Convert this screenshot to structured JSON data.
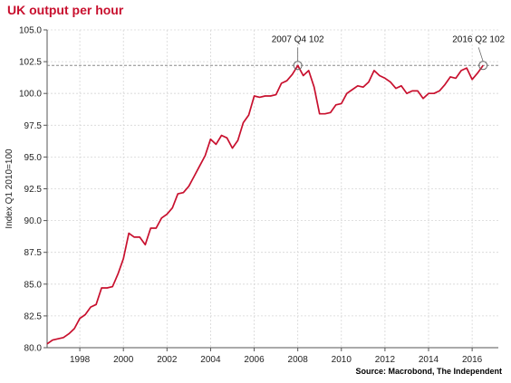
{
  "chart_data": {
    "type": "line",
    "title": "UK output per hour",
    "ylabel": "Index Q1 2010=100",
    "xlabel": "",
    "source": "Source: Macrobond, The Independent",
    "xlim": [
      1996.5,
      2017.2
    ],
    "ylim": [
      80.0,
      105.0
    ],
    "yticks": [
      80.0,
      82.5,
      85.0,
      87.5,
      90.0,
      92.5,
      95.0,
      97.5,
      100.0,
      102.5,
      105.0
    ],
    "ytick_labels": [
      "80.0",
      "82.5",
      "85.0",
      "87.5",
      "90.0",
      "92.5",
      "95.0",
      "97.5",
      "100.0",
      "102.5",
      "105.0"
    ],
    "xticks": [
      1998,
      2000,
      2002,
      2004,
      2006,
      2008,
      2010,
      2012,
      2014,
      2016
    ],
    "xtick_labels": [
      "1998",
      "2000",
      "2002",
      "2004",
      "2006",
      "2008",
      "2010",
      "2012",
      "2014",
      "2016"
    ],
    "grid": true,
    "reference_line": 102.2,
    "series": [
      {
        "color": "#c8102e",
        "x": [
          1996.5,
          1996.75,
          1997.0,
          1997.25,
          1997.5,
          1997.75,
          1998.0,
          1998.25,
          1998.5,
          1998.75,
          1999.0,
          1999.25,
          1999.5,
          1999.75,
          2000.0,
          2000.25,
          2000.5,
          2000.75,
          2001.0,
          2001.25,
          2001.5,
          2001.75,
          2002.0,
          2002.25,
          2002.5,
          2002.75,
          2003.0,
          2003.25,
          2003.5,
          2003.75,
          2004.0,
          2004.25,
          2004.5,
          2004.75,
          2005.0,
          2005.25,
          2005.5,
          2005.75,
          2006.0,
          2006.25,
          2006.5,
          2006.75,
          2007.0,
          2007.25,
          2007.5,
          2007.75,
          2008.0,
          2008.25,
          2008.5,
          2008.75,
          2009.0,
          2009.25,
          2009.5,
          2009.75,
          2010.0,
          2010.25,
          2010.5,
          2010.75,
          2011.0,
          2011.25,
          2011.5,
          2011.75,
          2012.0,
          2012.25,
          2012.5,
          2012.75,
          2013.0,
          2013.25,
          2013.5,
          2013.75,
          2014.0,
          2014.25,
          2014.5,
          2014.75,
          2015.0,
          2015.25,
          2015.5,
          2015.75,
          2016.0,
          2016.25,
          2016.5
        ],
        "y": [
          80.3,
          80.6,
          80.7,
          80.8,
          81.1,
          81.5,
          82.3,
          82.6,
          83.2,
          83.4,
          84.7,
          84.7,
          84.8,
          85.8,
          87.0,
          89.0,
          88.7,
          88.7,
          88.1,
          89.4,
          89.4,
          90.2,
          90.5,
          91.0,
          92.1,
          92.2,
          92.7,
          93.5,
          94.3,
          95.1,
          96.4,
          96.0,
          96.7,
          96.5,
          95.7,
          96.3,
          97.7,
          98.3,
          99.8,
          99.7,
          99.8,
          99.8,
          99.9,
          100.8,
          101.0,
          101.5,
          102.2,
          101.4,
          101.8,
          100.5,
          98.4,
          98.4,
          98.5,
          99.1,
          99.2,
          100.0,
          100.3,
          100.6,
          100.5,
          100.9,
          101.8,
          101.4,
          101.2,
          100.9,
          100.4,
          100.6,
          100.0,
          100.2,
          100.2,
          99.6,
          100.0,
          100.0,
          100.2,
          100.7,
          101.3,
          101.2,
          101.8,
          102.0,
          101.1,
          101.6,
          102.2
        ]
      }
    ],
    "annotations": [
      {
        "label": "2007 Q4 102",
        "x": 2008.0,
        "y": 102.2
      },
      {
        "label": "2016 Q2 102",
        "x": 2016.5,
        "y": 102.2
      }
    ]
  }
}
